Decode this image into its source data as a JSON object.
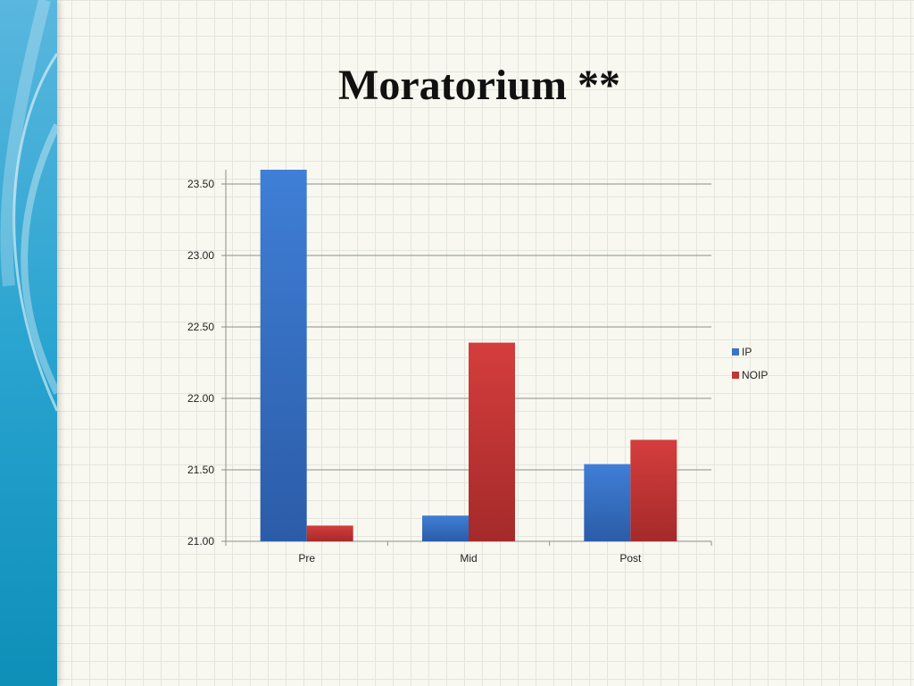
{
  "slide": {
    "title": "Moratorium **"
  },
  "chart_data": {
    "type": "bar",
    "title": "",
    "categories": [
      "Pre",
      "Mid",
      "Post"
    ],
    "series": [
      {
        "name": "IP",
        "values": [
          23.6,
          21.18,
          21.54
        ],
        "color": "#3a74c4"
      },
      {
        "name": "NOIP",
        "values": [
          21.11,
          22.39,
          21.71
        ],
        "color": "#c43434"
      }
    ],
    "yticks": [
      "21.00",
      "21.50",
      "22.00",
      "22.50",
      "23.00",
      "23.50"
    ],
    "ylim": [
      21.0,
      23.6
    ],
    "grid": true,
    "legend": "right"
  }
}
